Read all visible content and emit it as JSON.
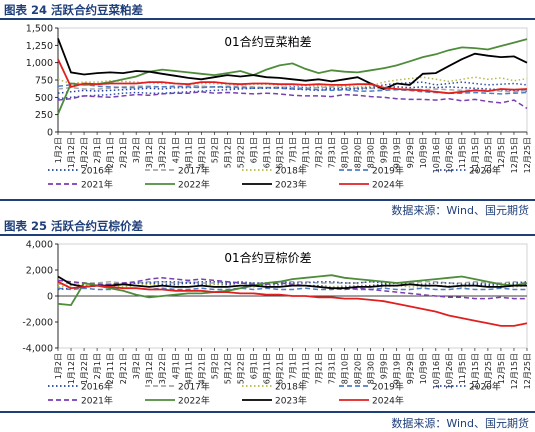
{
  "figures": [
    {
      "caption": "图表 24 活跃合约豆菜粕差",
      "source": "数据来源：Wind、国元期货"
    },
    {
      "caption": "图表 25 活跃合约豆棕价差",
      "source": "数据来源：Wind、国元期货"
    }
  ],
  "x_ticks": [
    "1月2日",
    "1月12日",
    "1月22日",
    "2月1日",
    "2月11日",
    "2月21日",
    "3月2日",
    "3月12日",
    "3月22日",
    "4月1日",
    "4月11日",
    "4月21日",
    "5月2日",
    "5月12日",
    "5月22日",
    "6月1日",
    "6月11日",
    "6月21日",
    "7月1日",
    "7月11日",
    "7月21日",
    "7月31日",
    "8月10日",
    "8月20日",
    "8月30日",
    "9月9日",
    "9月19日",
    "9月29日",
    "10月9日",
    "10月16日",
    "10月26日",
    "11月5日",
    "11月15日",
    "11月25日",
    "12月5日",
    "12月15日",
    "12月25日"
  ],
  "colors": {
    "s2016": "#1f3f9a",
    "s2017": "#a8a8a8",
    "s2018": "#b5b84a",
    "s2019": "#4f7fc4",
    "s2020": "#2f4fa8",
    "s2021": "#7a3fb0",
    "s2022": "#4e8c3a",
    "s2023": "#000000",
    "s2024": "#e02020"
  },
  "chart_data": [
    {
      "type": "line",
      "title": "01合约豆菜粕差",
      "ylim": [
        0,
        1500
      ],
      "yticks": [
        "0",
        "250",
        "500",
        "750",
        "1,000",
        "1,250",
        "1,500"
      ],
      "x": "x_ticks (daily, Jan 2 – Dec 25)",
      "legend": [
        "2016年",
        "2017年",
        "2018年",
        "2019年",
        "2020年",
        "2021年",
        "2022年",
        "2023年",
        "2024年"
      ],
      "series": [
        {
          "name": "2016年",
          "style": "dotted",
          "values": [
            560,
            580,
            600,
            590,
            600,
            610,
            620,
            630,
            620,
            640,
            640,
            650,
            650,
            640,
            630,
            640,
            640,
            640,
            650,
            640,
            640,
            630,
            620,
            620,
            630,
            640,
            650,
            640,
            650,
            640,
            650,
            640,
            630,
            620,
            610,
            600,
            590
          ]
        },
        {
          "name": "2017年",
          "style": "dashed",
          "values": [
            620,
            640,
            620,
            620,
            630,
            650,
            660,
            660,
            650,
            650,
            670,
            660,
            650,
            660,
            660,
            650,
            640,
            650,
            640,
            630,
            640,
            650,
            640,
            630,
            630,
            620,
            610,
            620,
            610,
            620,
            610,
            600,
            610,
            600,
            590,
            580,
            600
          ]
        },
        {
          "name": "2018年",
          "style": "dotted",
          "values": [
            760,
            700,
            720,
            720,
            740,
            730,
            720,
            710,
            700,
            700,
            690,
            700,
            700,
            690,
            680,
            690,
            690,
            680,
            680,
            670,
            660,
            650,
            660,
            650,
            660,
            720,
            750,
            770,
            790,
            760,
            730,
            760,
            790,
            760,
            780,
            740,
            770
          ]
        },
        {
          "name": "2019年",
          "style": "dashed",
          "values": [
            660,
            680,
            690,
            660,
            650,
            640,
            640,
            650,
            650,
            660,
            650,
            640,
            650,
            650,
            640,
            630,
            640,
            630,
            620,
            620,
            610,
            600,
            610,
            590,
            590,
            600,
            610,
            600,
            580,
            570,
            560,
            560,
            570,
            560,
            550,
            560,
            570
          ]
        },
        {
          "name": "2020年",
          "style": "dotted",
          "values": [
            480,
            500,
            520,
            530,
            540,
            560,
            570,
            560,
            560,
            570,
            580,
            590,
            600,
            610,
            620,
            630,
            630,
            640,
            620,
            610,
            600,
            620,
            620,
            630,
            640,
            680,
            700,
            710,
            720,
            680,
            700,
            720,
            700,
            680,
            690,
            700,
            680
          ]
        },
        {
          "name": "2021年",
          "style": "dashed",
          "values": [
            460,
            480,
            520,
            510,
            500,
            520,
            540,
            530,
            550,
            560,
            560,
            580,
            560,
            570,
            560,
            550,
            560,
            550,
            530,
            520,
            520,
            510,
            540,
            530,
            510,
            500,
            480,
            470,
            470,
            460,
            480,
            450,
            470,
            440,
            420,
            460,
            340
          ]
        },
        {
          "name": "2022年",
          "style": "solid",
          "values": [
            260,
            700,
            680,
            690,
            720,
            760,
            800,
            870,
            900,
            880,
            860,
            840,
            820,
            850,
            880,
            820,
            900,
            960,
            990,
            910,
            850,
            890,
            870,
            860,
            890,
            920,
            960,
            1020,
            1080,
            1120,
            1180,
            1220,
            1210,
            1190,
            1240,
            1290,
            1340
          ]
        },
        {
          "name": "2023年",
          "style": "solid",
          "values": [
            1350,
            860,
            830,
            850,
            860,
            850,
            880,
            870,
            840,
            810,
            780,
            760,
            790,
            820,
            800,
            820,
            790,
            780,
            760,
            740,
            760,
            730,
            760,
            790,
            700,
            620,
            700,
            680,
            840,
            850,
            950,
            1050,
            1130,
            1100,
            1080,
            1090,
            1000
          ]
        },
        {
          "name": "2024年",
          "style": "solid",
          "values": [
            1050,
            650,
            700,
            690,
            700,
            700,
            700,
            720,
            720,
            700,
            690,
            720,
            720,
            700,
            690,
            700,
            700,
            690,
            690,
            680,
            690,
            680,
            680,
            690,
            690,
            640,
            620,
            610,
            600,
            580,
            560,
            580,
            600,
            590,
            620,
            610,
            620
          ]
        }
      ]
    },
    {
      "type": "line",
      "title": "01合约豆棕价差",
      "ylim": [
        -4000,
        4000
      ],
      "yticks": [
        "-4,000",
        "-2,000",
        "0",
        "2,000",
        "4,000"
      ],
      "x": "x_ticks (daily, Jan 2 – Dec 25)",
      "legend": [
        "2016年",
        "2017年",
        "2018年",
        "2019年",
        "2020年",
        "2021年",
        "2022年",
        "2023年",
        "2024年"
      ],
      "series": [
        {
          "name": "2016年",
          "style": "dotted",
          "values": [
            700,
            800,
            900,
            800,
            900,
            900,
            1000,
            1000,
            900,
            900,
            1000,
            900,
            900,
            900,
            1000,
            900,
            800,
            900,
            900,
            800,
            800,
            700,
            700,
            800,
            800,
            900,
            1000,
            900,
            800,
            800,
            700,
            800,
            900,
            800,
            800,
            900,
            900
          ]
        },
        {
          "name": "2017年",
          "style": "dashed",
          "values": [
            900,
            1000,
            1000,
            1000,
            1100,
            1000,
            1000,
            1100,
            1100,
            1000,
            1100,
            1000,
            1000,
            1100,
            1000,
            1000,
            1000,
            1100,
            1100,
            1100,
            1000,
            1000,
            1000,
            1000,
            1100,
            1100,
            1000,
            1000,
            1100,
            1100,
            1000,
            1000,
            1100,
            1000,
            1000,
            1100,
            1000
          ]
        },
        {
          "name": "2018年",
          "style": "dotted",
          "values": [
            700,
            800,
            900,
            800,
            800,
            700,
            800,
            900,
            800,
            800,
            700,
            800,
            900,
            800,
            800,
            700,
            800,
            800,
            900,
            800,
            700,
            700,
            800,
            800,
            700,
            700,
            800,
            700,
            700,
            800,
            800,
            700,
            800,
            700,
            800,
            700,
            800
          ]
        },
        {
          "name": "2019年",
          "style": "dashed",
          "values": [
            600,
            500,
            600,
            500,
            500,
            600,
            600,
            500,
            600,
            500,
            500,
            600,
            500,
            500,
            600,
            500,
            600,
            500,
            500,
            600,
            500,
            500,
            600,
            500,
            500,
            600,
            500,
            500,
            600,
            500,
            500,
            600,
            500,
            500,
            600,
            500,
            500
          ]
        },
        {
          "name": "2020年",
          "style": "dotted",
          "values": [
            500,
            600,
            700,
            800,
            900,
            900,
            1000,
            1000,
            1100,
            1100,
            1000,
            1100,
            1100,
            1000,
            1100,
            1000,
            1000,
            1100,
            1000,
            1000,
            1100,
            1100,
            1000,
            1000,
            1100,
            1000,
            1000,
            900,
            900,
            1000,
            1000,
            900,
            1000,
            900,
            900,
            1000,
            1100
          ]
        },
        {
          "name": "2021年",
          "style": "dashed",
          "values": [
            1200,
            1100,
            1000,
            900,
            900,
            1000,
            1100,
            1300,
            1400,
            1300,
            1200,
            1300,
            1200,
            1100,
            1000,
            900,
            900,
            1000,
            900,
            800,
            700,
            600,
            500,
            600,
            500,
            400,
            300,
            200,
            100,
            0,
            -100,
            -100,
            -200,
            -200,
            -100,
            -200,
            -200
          ]
        },
        {
          "name": "2022年",
          "style": "solid",
          "values": [
            -600,
            -700,
            1000,
            800,
            600,
            400,
            100,
            -100,
            0,
            100,
            200,
            200,
            300,
            400,
            600,
            800,
            1000,
            1100,
            1300,
            1400,
            1500,
            1600,
            1400,
            1300,
            1200,
            1100,
            1000,
            1100,
            1200,
            1300,
            1400,
            1500,
            1300,
            1100,
            900,
            800,
            1000
          ]
        },
        {
          "name": "2023年",
          "style": "solid",
          "values": [
            1500,
            900,
            700,
            800,
            800,
            900,
            800,
            700,
            800,
            700,
            700,
            800,
            700,
            700,
            800,
            800,
            700,
            700,
            800,
            800,
            700,
            600,
            600,
            700,
            700,
            800,
            800,
            900,
            800,
            800,
            700,
            800,
            800,
            700,
            700,
            800,
            800
          ]
        },
        {
          "name": "2024年",
          "style": "solid",
          "values": [
            1100,
            600,
            700,
            800,
            700,
            600,
            600,
            500,
            500,
            400,
            400,
            400,
            300,
            300,
            200,
            200,
            100,
            100,
            0,
            0,
            -100,
            -100,
            -200,
            -200,
            -300,
            -400,
            -600,
            -800,
            -1000,
            -1200,
            -1500,
            -1700,
            -1900,
            -2100,
            -2300,
            -2300,
            -2100
          ]
        }
      ]
    }
  ]
}
